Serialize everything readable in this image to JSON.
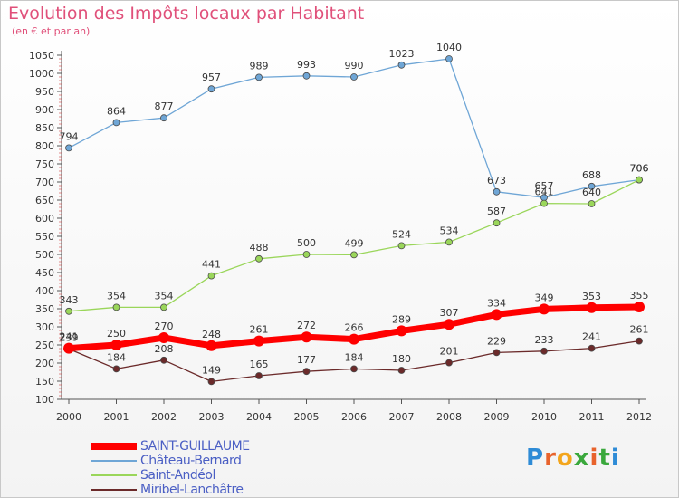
{
  "title": "Evolution des Impôts locaux par Habitant",
  "subtitle": "(en € et par an)",
  "logo": {
    "text": "Proxiti",
    "letters": [
      "P",
      "r",
      "o",
      "x",
      "i",
      "t",
      "i"
    ],
    "colors": [
      "#2e8bd6",
      "#e8632c",
      "#f3a51c",
      "#3aa83c",
      "#e8632c",
      "#3aa83c",
      "#2e8bd6"
    ]
  },
  "chart_data": {
    "type": "line",
    "title": "Evolution des Impôts locaux par Habitant",
    "ylabel": "(en € et par an)",
    "xlabel": "",
    "x": [
      2000,
      2001,
      2002,
      2003,
      2004,
      2005,
      2006,
      2007,
      2008,
      2009,
      2010,
      2011,
      2012
    ],
    "ylim": [
      100,
      1050
    ],
    "yticks": [
      100,
      150,
      200,
      250,
      300,
      350,
      400,
      450,
      500,
      550,
      600,
      650,
      700,
      750,
      800,
      850,
      900,
      950,
      1000,
      1050
    ],
    "grid": false,
    "legend_position": "bottom-left",
    "series": [
      {
        "name": "SAINT-GUILLAUME",
        "color": "#ff0000",
        "values": [
          241,
          250,
          270,
          248,
          261,
          272,
          266,
          289,
          307,
          334,
          349,
          353,
          355
        ]
      },
      {
        "name": "Château-Bernard",
        "color": "#6fa6d6",
        "values": [
          794,
          864,
          877,
          957,
          989,
          993,
          990,
          1023,
          1040,
          673,
          657,
          688,
          706
        ]
      },
      {
        "name": "Saint-Andéol",
        "color": "#9ad65a",
        "values": [
          343,
          354,
          354,
          441,
          488,
          500,
          499,
          524,
          534,
          587,
          641,
          640,
          706
        ]
      },
      {
        "name": "Miribel-Lanchâtre",
        "color": "#6b2a2a",
        "values": [
          239,
          184,
          208,
          149,
          165,
          177,
          184,
          180,
          201,
          229,
          233,
          241,
          261
        ]
      }
    ]
  }
}
